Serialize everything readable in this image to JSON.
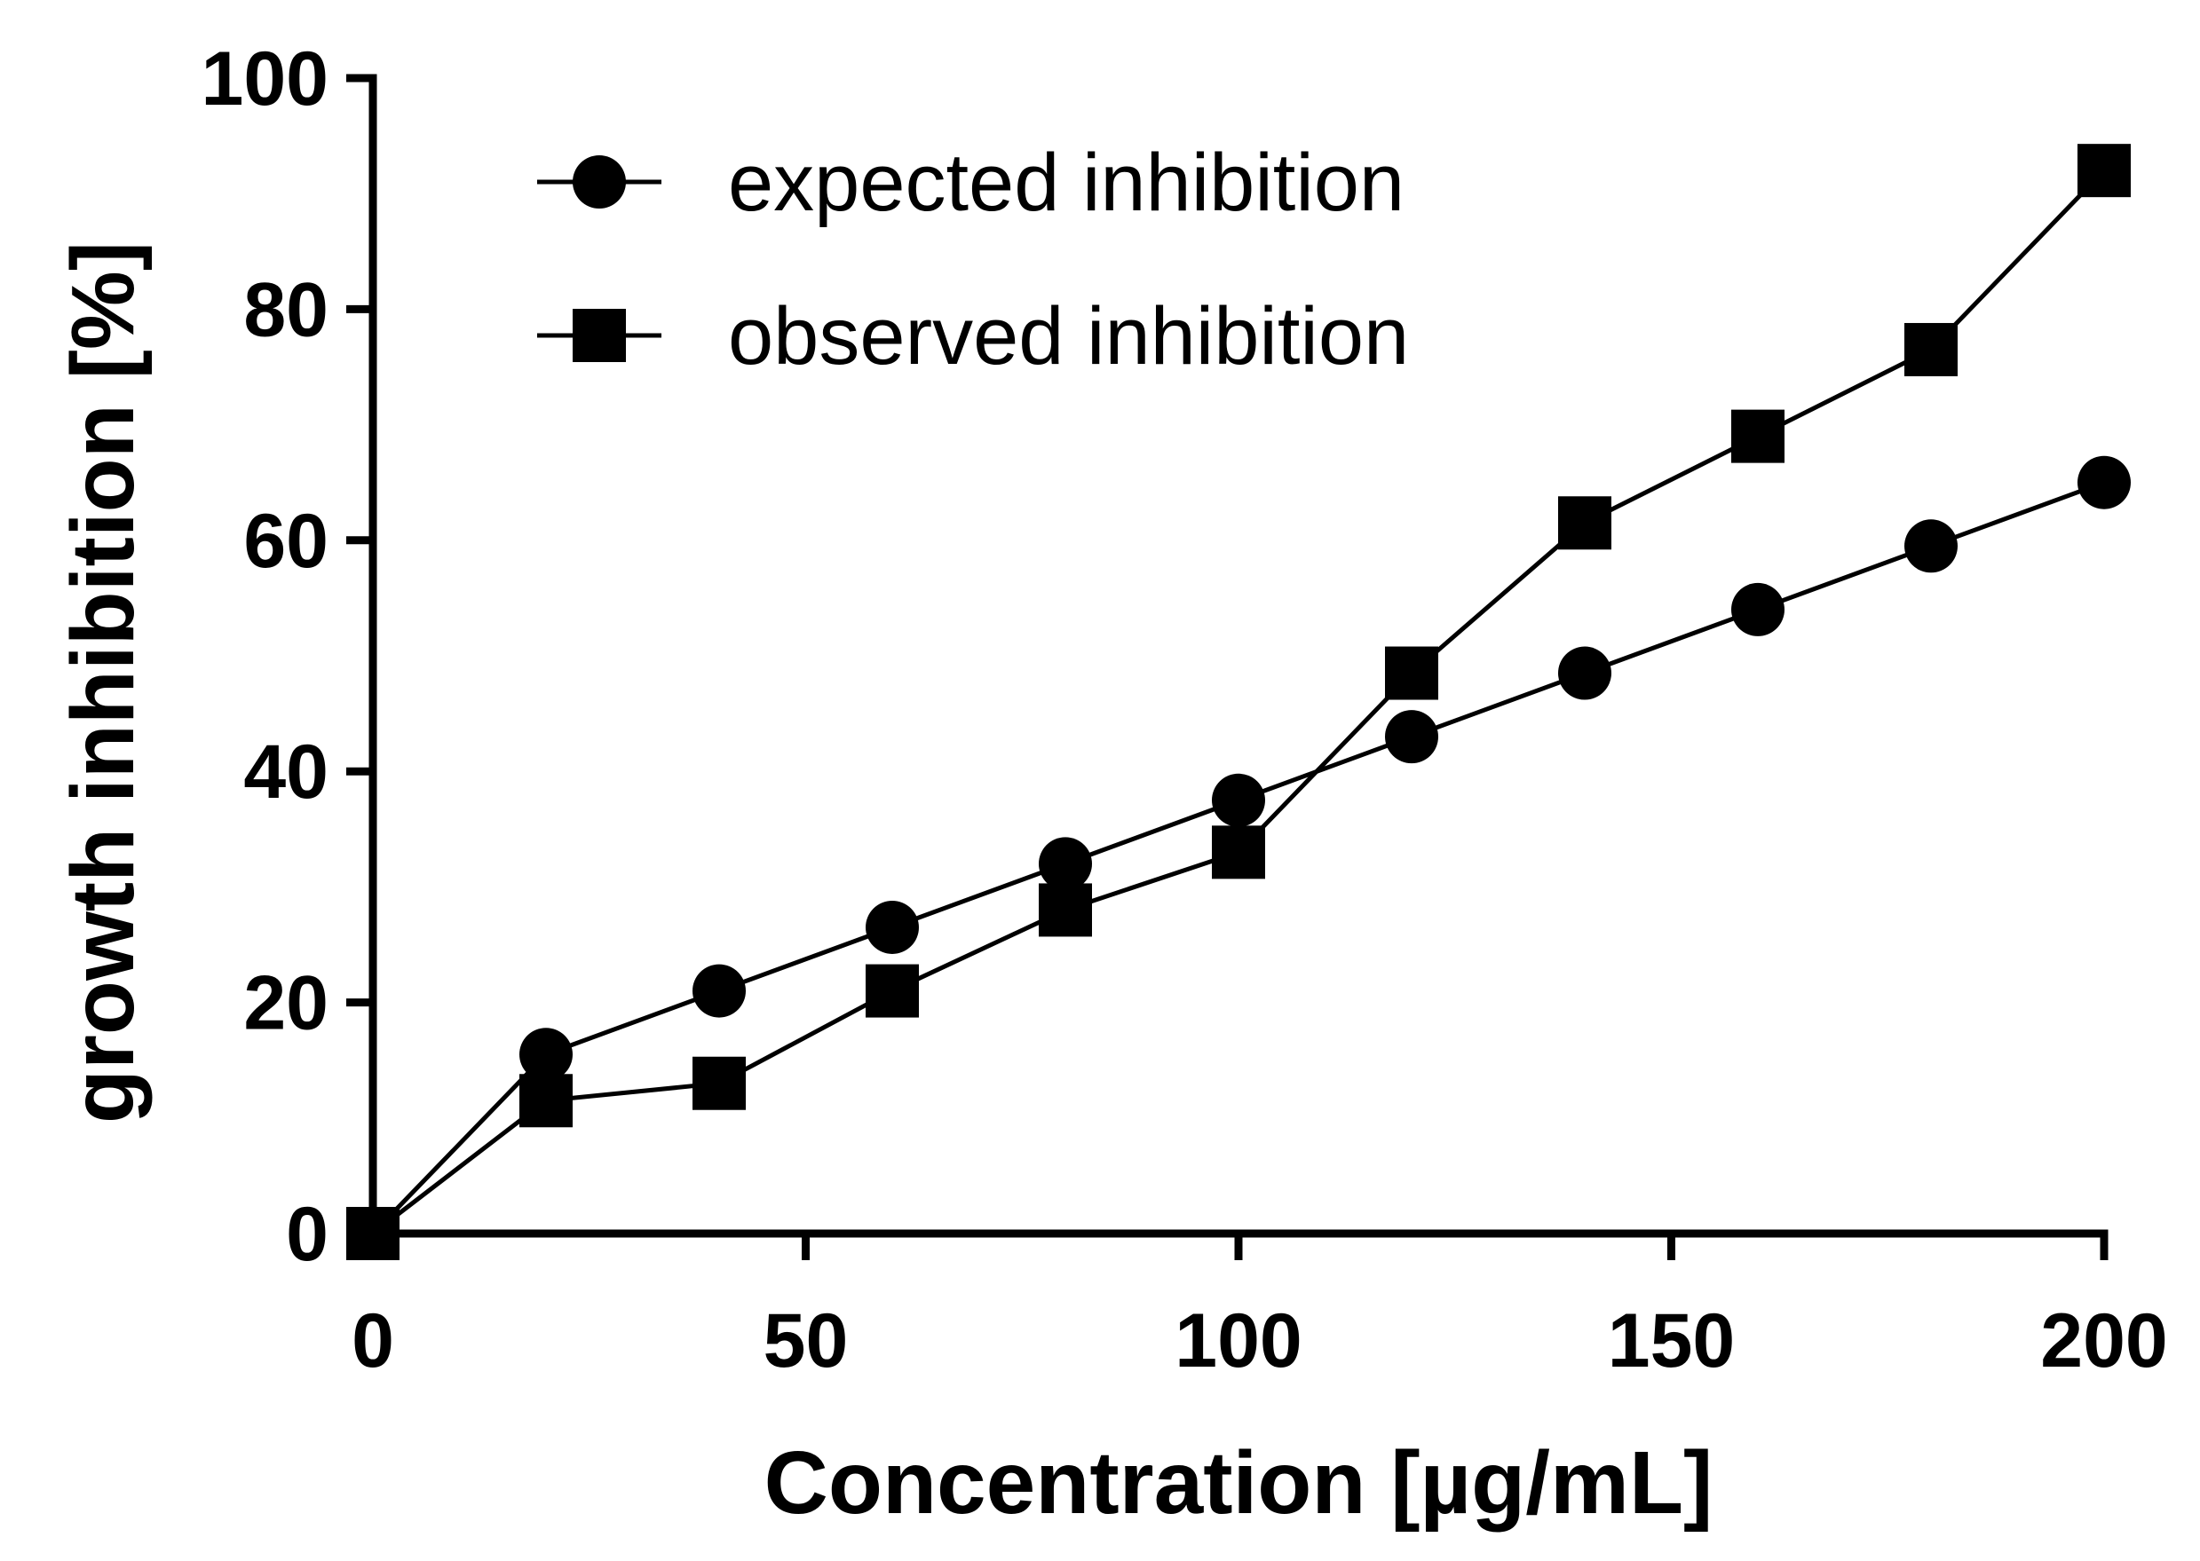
{
  "chart_data": {
    "type": "line",
    "title": "",
    "xlabel": "Concentration [µg/mL]",
    "ylabel": "growth inhibition [%]",
    "xlim": [
      0,
      200
    ],
    "ylim": [
      0,
      100
    ],
    "xticks": [
      0,
      50,
      100,
      150,
      200
    ],
    "yticks": [
      0,
      20,
      40,
      60,
      80,
      100
    ],
    "x": [
      0,
      20,
      40,
      60,
      80,
      100,
      120,
      140,
      160,
      180,
      200
    ],
    "grid": false,
    "legend_position": "top-left",
    "series": [
      {
        "name": "expected inhibition",
        "marker": "circle",
        "values": [
          0,
          15.5,
          21,
          26.5,
          32,
          37.5,
          43,
          48.5,
          54,
          59.5,
          65
        ]
      },
      {
        "name": "observed inhibition",
        "marker": "square",
        "values": [
          0,
          11.5,
          13,
          21,
          28,
          33,
          48.5,
          61.5,
          69,
          76.5,
          92
        ]
      }
    ]
  }
}
